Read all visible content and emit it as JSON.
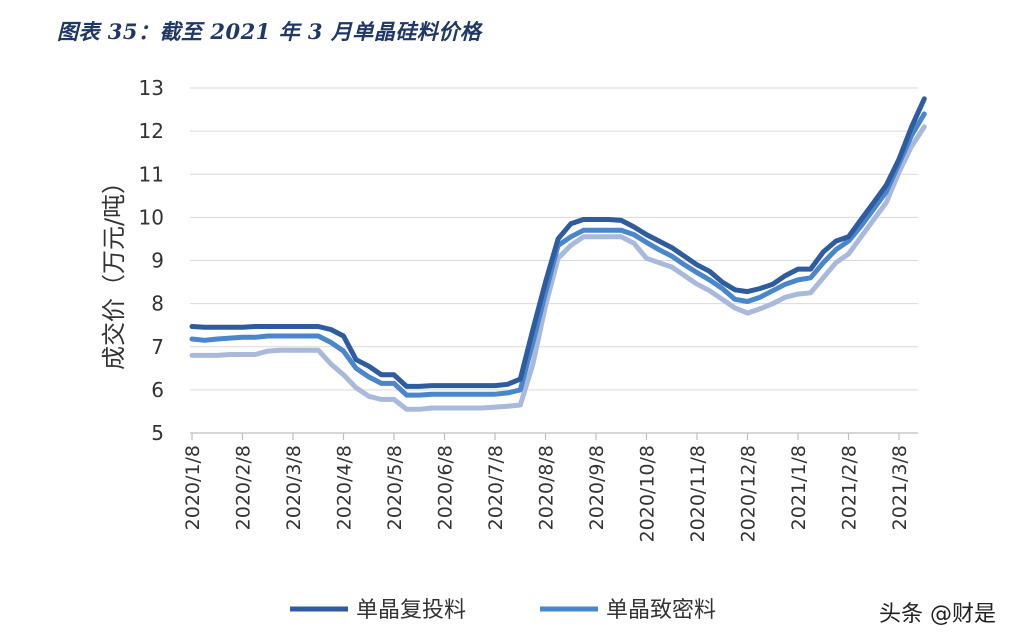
{
  "title": "图表 35：截至 2021 年 3 月单晶硅料价格",
  "watermark": "头条 @财是",
  "chart_data": {
    "type": "line",
    "ylabel": "成交价（万元/吨）",
    "xlabel": "",
    "ylim": [
      5,
      13
    ],
    "yticks": [
      5,
      6,
      7,
      8,
      9,
      10,
      11,
      12,
      13
    ],
    "grid": "horizontal",
    "legend_position": "bottom",
    "categories": [
      "2020/1/8",
      "2020/2/8",
      "2020/3/8",
      "2020/4/8",
      "2020/5/8",
      "2020/6/8",
      "2020/7/8",
      "2020/8/8",
      "2020/9/8",
      "2020/10/8",
      "2020/11/8",
      "2020/12/8",
      "2021/1/8",
      "2021/2/8",
      "2021/3/8"
    ],
    "x": [
      0,
      0.25,
      0.5,
      0.75,
      1,
      1.25,
      1.5,
      1.75,
      2,
      2.25,
      2.5,
      2.75,
      3,
      3.25,
      3.5,
      3.75,
      4,
      4.25,
      4.5,
      4.75,
      5,
      5.25,
      5.5,
      5.75,
      6,
      6.25,
      6.5,
      6.75,
      7,
      7.25,
      7.5,
      7.75,
      8,
      8.25,
      8.5,
      8.75,
      9,
      9.25,
      9.5,
      9.75,
      10,
      10.25,
      10.5,
      10.75,
      11,
      11.25,
      11.5,
      11.75,
      12,
      12.25,
      12.5,
      12.75,
      13,
      13.25,
      13.5,
      13.75,
      14,
      14.25,
      14.5
    ],
    "series": [
      {
        "name": "单晶复投料",
        "color": "#2e5c9e",
        "values": [
          7.47,
          7.45,
          7.45,
          7.45,
          7.45,
          7.47,
          7.47,
          7.47,
          7.47,
          7.47,
          7.47,
          7.4,
          7.25,
          6.7,
          6.55,
          6.35,
          6.35,
          6.08,
          6.08,
          6.1,
          6.1,
          6.1,
          6.1,
          6.1,
          6.1,
          6.13,
          6.25,
          7.4,
          8.5,
          9.5,
          9.85,
          9.95,
          9.95,
          9.95,
          9.93,
          9.78,
          9.6,
          9.45,
          9.3,
          9.1,
          8.9,
          8.75,
          8.5,
          8.32,
          8.28,
          8.35,
          8.45,
          8.65,
          8.8,
          8.8,
          9.2,
          9.45,
          9.55,
          9.95,
          10.35,
          10.75,
          11.35,
          12.1,
          12.75
        ]
      },
      {
        "name": "单晶致密料",
        "color": "#4a86cc",
        "values": [
          7.18,
          7.15,
          7.18,
          7.2,
          7.22,
          7.22,
          7.25,
          7.25,
          7.25,
          7.25,
          7.25,
          7.1,
          6.9,
          6.5,
          6.3,
          6.15,
          6.15,
          5.88,
          5.88,
          5.9,
          5.9,
          5.9,
          5.9,
          5.9,
          5.9,
          5.93,
          6.0,
          7.1,
          8.25,
          9.35,
          9.55,
          9.7,
          9.7,
          9.7,
          9.7,
          9.6,
          9.42,
          9.25,
          9.1,
          8.9,
          8.72,
          8.55,
          8.35,
          8.1,
          8.05,
          8.15,
          8.3,
          8.45,
          8.55,
          8.6,
          8.95,
          9.25,
          9.45,
          9.8,
          10.2,
          10.6,
          11.25,
          11.9,
          12.4
        ]
      },
      {
        "name": "",
        "color": "#a9b9dc",
        "values": [
          6.8,
          6.8,
          6.8,
          6.82,
          6.82,
          6.82,
          6.9,
          6.92,
          6.92,
          6.92,
          6.92,
          6.6,
          6.35,
          6.05,
          5.85,
          5.78,
          5.78,
          5.55,
          5.55,
          5.58,
          5.58,
          5.58,
          5.58,
          5.58,
          5.6,
          5.62,
          5.65,
          6.6,
          7.95,
          9.05,
          9.35,
          9.55,
          9.55,
          9.55,
          9.55,
          9.4,
          9.05,
          8.95,
          8.85,
          8.65,
          8.45,
          8.3,
          8.1,
          7.9,
          7.78,
          7.88,
          8.0,
          8.15,
          8.22,
          8.25,
          8.6,
          8.95,
          9.15,
          9.55,
          9.95,
          10.35,
          11.05,
          11.65,
          12.1
        ]
      }
    ],
    "legend": [
      "单晶复投料",
      "单晶致密料"
    ]
  }
}
